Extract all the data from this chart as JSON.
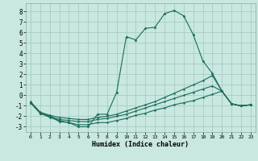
{
  "xlabel": "Humidex (Indice chaleur)",
  "bg_color": "#c8e8e0",
  "grid_color": "#a8ccc4",
  "line_color": "#1a6b5a",
  "xlim": [
    -0.5,
    23.5
  ],
  "ylim": [
    -3.5,
    8.8
  ],
  "xticks": [
    0,
    1,
    2,
    3,
    4,
    5,
    6,
    7,
    8,
    9,
    10,
    11,
    12,
    13,
    14,
    15,
    16,
    17,
    18,
    19,
    20,
    21,
    22,
    23
  ],
  "yticks": [
    -3,
    -2,
    -1,
    0,
    1,
    2,
    3,
    4,
    5,
    6,
    7,
    8
  ],
  "x": [
    0,
    1,
    2,
    3,
    4,
    5,
    6,
    7,
    8,
    9,
    10,
    11,
    12,
    13,
    14,
    15,
    16,
    17,
    18,
    19,
    20,
    21,
    22,
    23
  ],
  "line1_y": [
    -0.7,
    -1.7,
    -2.0,
    -2.5,
    -2.6,
    -3.0,
    -3.0,
    -1.8,
    -1.8,
    0.3,
    5.6,
    5.3,
    6.4,
    6.5,
    7.8,
    8.1,
    7.6,
    5.8,
    3.3,
    2.1,
    0.4,
    -0.8,
    -1.0,
    -0.9
  ],
  "line2_y": [
    -0.6,
    -1.6,
    -1.9,
    -2.1,
    -2.2,
    -2.3,
    -2.3,
    -2.1,
    -2.0,
    -1.8,
    -1.5,
    -1.2,
    -0.9,
    -0.6,
    -0.2,
    0.2,
    0.6,
    1.0,
    1.4,
    1.9,
    0.4,
    -0.8,
    -1.0,
    -0.9
  ],
  "line3_y": [
    -0.7,
    -1.7,
    -2.0,
    -2.3,
    -2.4,
    -2.5,
    -2.5,
    -2.3,
    -2.2,
    -2.0,
    -1.8,
    -1.5,
    -1.2,
    -0.9,
    -0.6,
    -0.3,
    0.0,
    0.3,
    0.6,
    0.9,
    0.4,
    -0.8,
    -1.0,
    -0.9
  ],
  "line4_y": [
    -0.7,
    -1.7,
    -2.1,
    -2.4,
    -2.6,
    -2.8,
    -2.8,
    -2.6,
    -2.6,
    -2.4,
    -2.2,
    -1.9,
    -1.7,
    -1.4,
    -1.2,
    -0.9,
    -0.7,
    -0.5,
    -0.2,
    0.1,
    0.4,
    -0.8,
    -1.0,
    -0.9
  ]
}
